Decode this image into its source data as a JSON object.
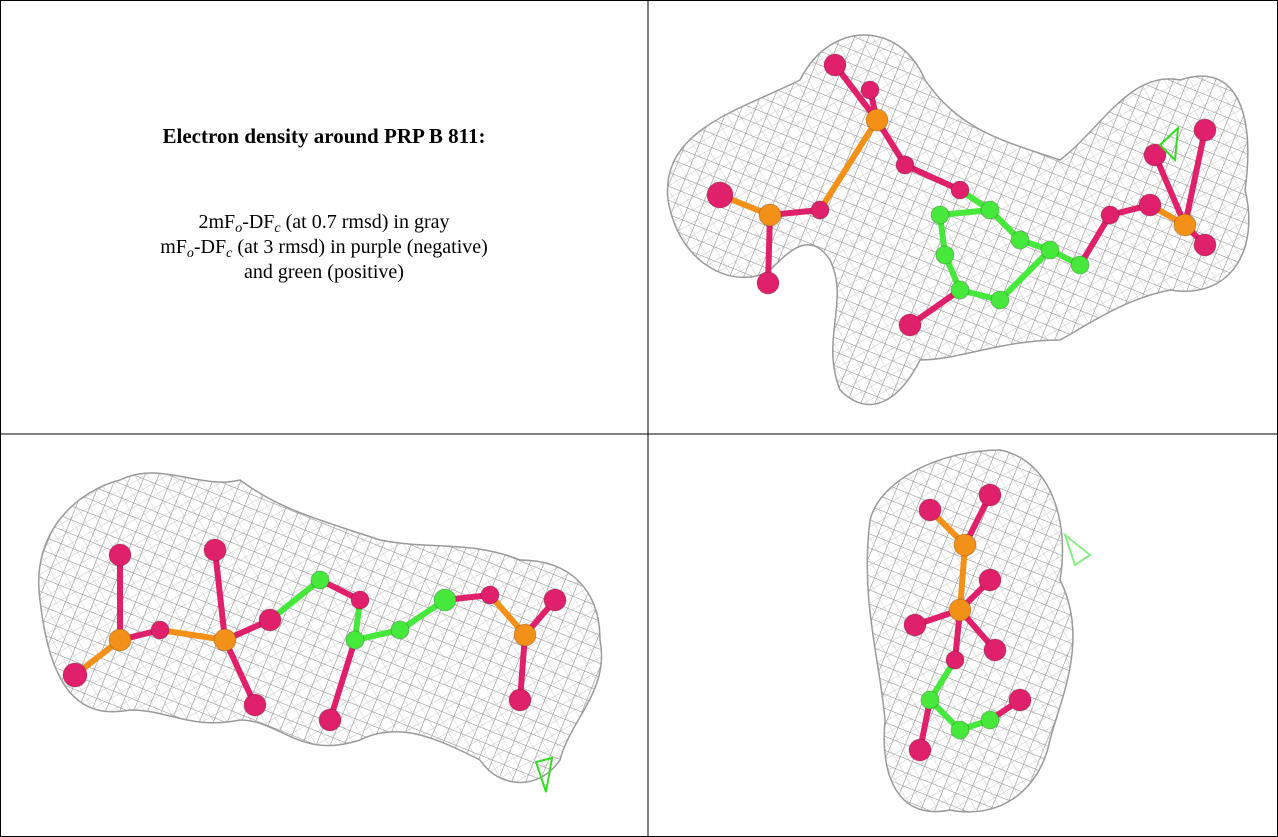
{
  "title": "Electron density around PRP B 811:",
  "legend": [
    [
      "2mF",
      "o",
      "-DF",
      "c",
      " (at 0.7 rmsd) in gray"
    ],
    [
      "mF",
      "o",
      "-DF",
      "c",
      " (at 3 rmsd) in purple (negative)"
    ],
    [
      "and green (positive)"
    ]
  ]
}
